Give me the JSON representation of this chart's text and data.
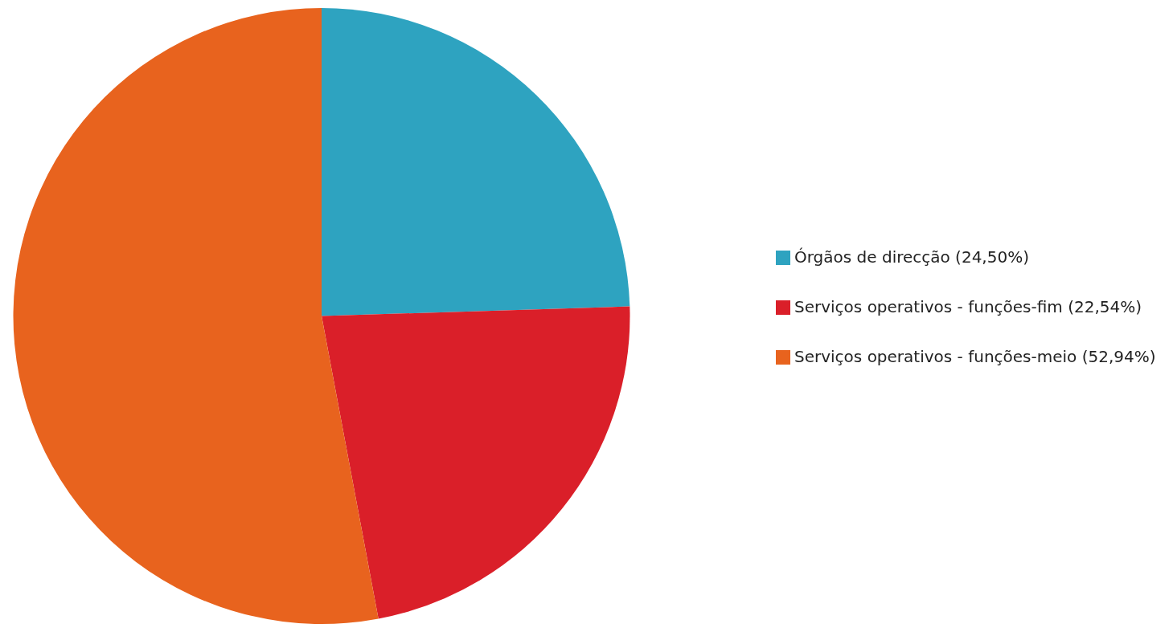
{
  "chart_data": {
    "type": "pie",
    "categories": [
      "Órgãos de direcção (24,50%)",
      "Serviços operativos - funções-fim (22,54%)",
      "Serviços operativos - funções-meio (52,94%)"
    ],
    "values": [
      24.5,
      22.54,
      52.94
    ],
    "colors": [
      "#2ea3c0",
      "#da1f29",
      "#e8631e"
    ],
    "legend": "right"
  }
}
